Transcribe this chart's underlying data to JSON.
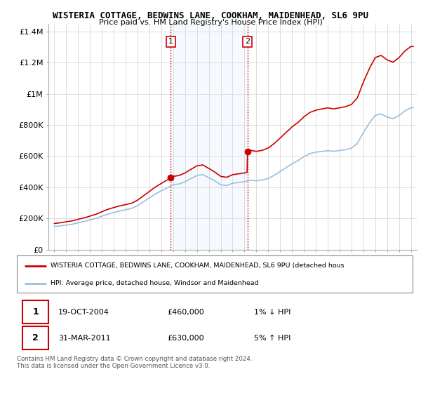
{
  "title1": "WISTERIA COTTAGE, BEDWINS LANE, COOKHAM, MAIDENHEAD, SL6 9PU",
  "title2": "Price paid vs. HM Land Registry's House Price Index (HPI)",
  "ylabel_ticks": [
    "£0",
    "£200K",
    "£400K",
    "£600K",
    "£800K",
    "£1M",
    "£1.2M",
    "£1.4M"
  ],
  "ylabel_values": [
    0,
    200000,
    400000,
    600000,
    800000,
    1000000,
    1200000,
    1400000
  ],
  "ylim": [
    0,
    1450000
  ],
  "xlim_start": 1994.5,
  "xlim_end": 2025.5,
  "sale1_x": 2004.8,
  "sale1_y": 460000,
  "sale2_x": 2011.25,
  "sale2_y": 630000,
  "legend_line1": "WISTERIA COTTAGE, BEDWINS LANE, COOKHAM, MAIDENHEAD, SL6 9PU (detached hous",
  "legend_line2": "HPI: Average price, detached house, Windsor and Maidenhead",
  "annotation1_date": "19-OCT-2004",
  "annotation1_price": "£460,000",
  "annotation1_hpi": "1% ↓ HPI",
  "annotation2_date": "31-MAR-2011",
  "annotation2_price": "£630,000",
  "annotation2_hpi": "5% ↑ HPI",
  "footer": "Contains HM Land Registry data © Crown copyright and database right 2024.\nThis data is licensed under the Open Government Licence v3.0.",
  "hpi_color": "#9bbfe0",
  "price_color": "#cc0000",
  "shade_color": "#ddeeff",
  "shaded_region1_start": 2004.8,
  "shaded_region1_end": 2011.25,
  "background_color": "#ffffff"
}
